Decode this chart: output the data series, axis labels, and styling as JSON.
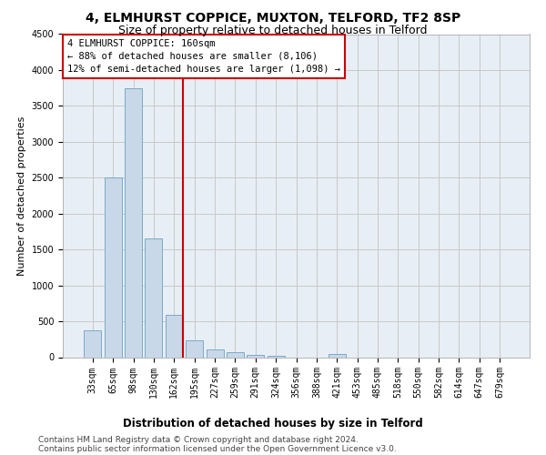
{
  "title1": "4, ELMHURST COPPICE, MUXTON, TELFORD, TF2 8SP",
  "title2": "Size of property relative to detached houses in Telford",
  "xlabel": "Distribution of detached houses by size in Telford",
  "ylabel": "Number of detached properties",
  "categories": [
    "33sqm",
    "65sqm",
    "98sqm",
    "130sqm",
    "162sqm",
    "195sqm",
    "227sqm",
    "259sqm",
    "291sqm",
    "324sqm",
    "356sqm",
    "388sqm",
    "421sqm",
    "453sqm",
    "485sqm",
    "518sqm",
    "550sqm",
    "582sqm",
    "614sqm",
    "647sqm",
    "679sqm"
  ],
  "values": [
    370,
    2500,
    3750,
    1650,
    590,
    230,
    110,
    65,
    35,
    25,
    0,
    0,
    50,
    0,
    0,
    0,
    0,
    0,
    0,
    0,
    0
  ],
  "bar_color": "#c8d8e8",
  "bar_edge_color": "#7aaac8",
  "bar_linewidth": 0.7,
  "vline_color": "#cc0000",
  "vline_x_index": 4,
  "annotation_line1": "4 ELMHURST COPPICE: 160sqm",
  "annotation_line2": "← 88% of detached houses are smaller (8,106)",
  "annotation_line3": "12% of semi-detached houses are larger (1,098) →",
  "annotation_box_color": "#cc0000",
  "ylim": [
    0,
    4500
  ],
  "yticks": [
    0,
    500,
    1000,
    1500,
    2000,
    2500,
    3000,
    3500,
    4000,
    4500
  ],
  "grid_color": "#c8c8c8",
  "bg_color": "#e8eef5",
  "footer_line1": "Contains HM Land Registry data © Crown copyright and database right 2024.",
  "footer_line2": "Contains public sector information licensed under the Open Government Licence v3.0.",
  "title1_fontsize": 10,
  "title2_fontsize": 9,
  "xlabel_fontsize": 8.5,
  "ylabel_fontsize": 8,
  "tick_fontsize": 7,
  "annotation_fontsize": 7.5,
  "footer_fontsize": 6.5
}
